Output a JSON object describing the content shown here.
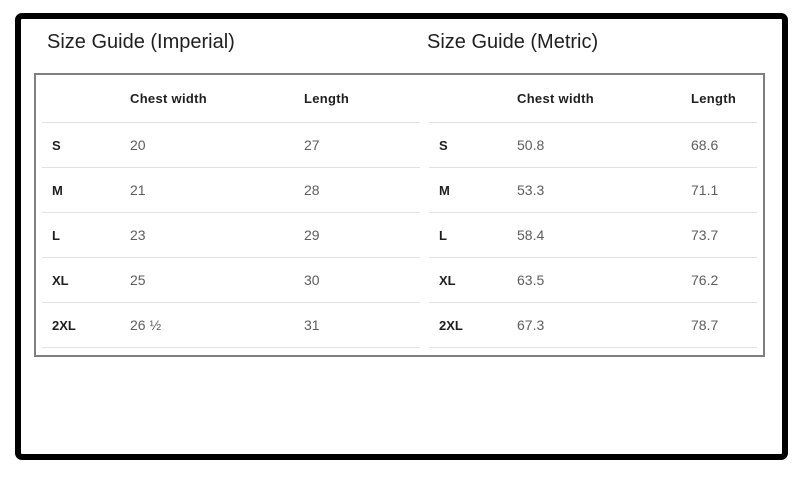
{
  "tables": [
    {
      "title": "Size Guide (Imperial)",
      "columns": {
        "size": "",
        "chest": "Chest width",
        "length": "Length"
      },
      "rows": [
        {
          "size": "S",
          "chest": "20",
          "length": "27"
        },
        {
          "size": "M",
          "chest": "21",
          "length": "28"
        },
        {
          "size": "L",
          "chest": "23",
          "length": "29"
        },
        {
          "size": "XL",
          "chest": "25",
          "length": "30"
        },
        {
          "size": "2XL",
          "chest": "26 ½",
          "length": "31"
        }
      ]
    },
    {
      "title": "Size Guide (Metric)",
      "columns": {
        "size": "",
        "chest": "Chest width",
        "length": "Length"
      },
      "rows": [
        {
          "size": "S",
          "chest": "50.8",
          "length": "68.6"
        },
        {
          "size": "M",
          "chest": "53.3",
          "length": "71.1"
        },
        {
          "size": "L",
          "chest": "58.4",
          "length": "73.7"
        },
        {
          "size": "XL",
          "chest": "63.5",
          "length": "76.2"
        },
        {
          "size": "2XL",
          "chest": "67.3",
          "length": "78.7"
        }
      ]
    }
  ],
  "colors": {
    "frame_color": "#000000",
    "accent_border": "#7f7f7f",
    "row_divider": "#e2e2e2",
    "heading_text": "#1f1f1f",
    "value_text": "#5d5d5d"
  }
}
